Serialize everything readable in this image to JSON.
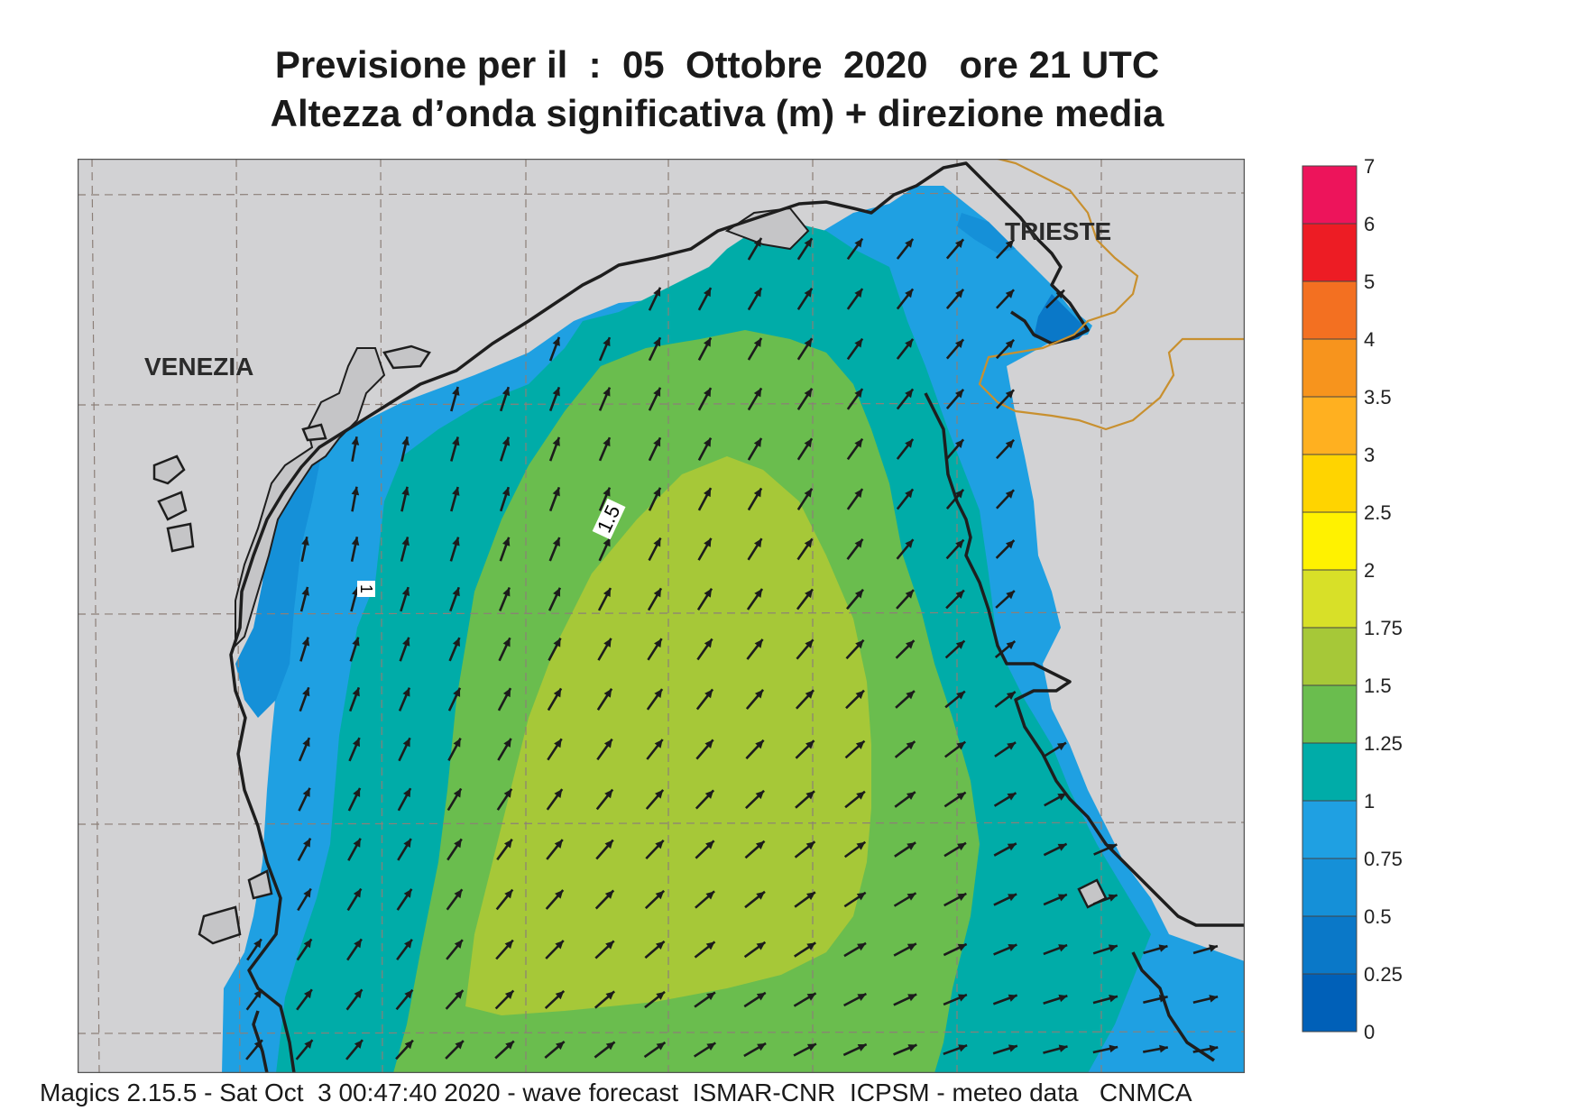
{
  "header": {
    "forecast_line": "Previsione per il  :  05  Ottobre  2020   ore 21 UTC",
    "variable_line": "Altezza d’onda significativa (m) + direzione media"
  },
  "map": {
    "cities": [
      {
        "name": "VENEZIA"
      },
      {
        "name": "TRIESTE"
      }
    ],
    "contour_labels": [
      "1",
      "1.5"
    ],
    "land_color": "#d2d2d4",
    "coast_color": "#1e1e1e",
    "border_color": "#c8902f",
    "arrow_color": "#1c1c1c",
    "mean_direction": "north-north-east"
  },
  "legend": {
    "labels": [
      "0",
      "0.25",
      "0.5",
      "0.75",
      "1",
      "1.25",
      "1.5",
      "1.75",
      "2",
      "2.5",
      "3",
      "3.5",
      "4",
      "5",
      "6",
      "7"
    ],
    "colors": [
      "#0060b8",
      "#0a78c8",
      "#1590d8",
      "#1fa0e2",
      "#00aca8",
      "#6abd4e",
      "#a6c838",
      "#d8e028",
      "#fff200",
      "#ffd400",
      "#ffb020",
      "#f7941d",
      "#f37021",
      "#ed1c24",
      "#ed145b"
    ]
  },
  "footer": {
    "text": "Magics 2.15.5 - Sat Oct  3 00:47:40 2020 - wave forecast  ISMAR-CNR  ICPSM - meteo data   CNMCA"
  }
}
